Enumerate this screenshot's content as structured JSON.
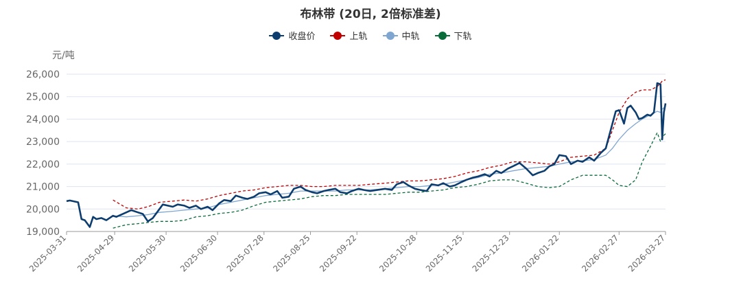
{
  "chart_data": {
    "type": "line",
    "title": "布林带 (20日, 2倍标准差)",
    "ylabel": "元/吨",
    "xlabel": "",
    "ylim": [
      19000,
      26000
    ],
    "yticks": [
      19000,
      20000,
      21000,
      22000,
      23000,
      24000,
      25000,
      26000
    ],
    "ytick_labels": [
      "19,000",
      "20,000",
      "21,000",
      "22,000",
      "23,000",
      "24,000",
      "25,000",
      "26,000"
    ],
    "xtick_labels": [
      "2025-03-31",
      "2025-04-29",
      "2025-05-30",
      "2025-06-30",
      "2025-07-28",
      "2025-08-25",
      "2025-09-22",
      "2025-10-28",
      "2025-11-25",
      "2025-12-23",
      "2026-01-22",
      "2026-02-27",
      "2026-03-27"
    ],
    "grid": true,
    "legend_position": "top",
    "series": [
      {
        "name": "收盘价",
        "color": "#0d3d6e",
        "style": "solid",
        "points": [
          [
            "2025-03-31",
            20350
          ],
          [
            "2025-04-02",
            20380
          ],
          [
            "2025-04-07",
            20300
          ],
          [
            "2025-04-09",
            19550
          ],
          [
            "2025-04-11",
            19500
          ],
          [
            "2025-04-14",
            19200
          ],
          [
            "2025-04-16",
            19650
          ],
          [
            "2025-04-18",
            19550
          ],
          [
            "2025-04-21",
            19600
          ],
          [
            "2025-04-24",
            19500
          ],
          [
            "2025-04-28",
            19700
          ],
          [
            "2025-04-30",
            19650
          ],
          [
            "2025-05-06",
            19850
          ],
          [
            "2025-05-09",
            19950
          ],
          [
            "2025-05-13",
            19850
          ],
          [
            "2025-05-16",
            19780
          ],
          [
            "2025-05-19",
            19450
          ],
          [
            "2025-05-22",
            19600
          ],
          [
            "2025-05-26",
            20000
          ],
          [
            "2025-05-28",
            20200
          ],
          [
            "2025-06-03",
            20100
          ],
          [
            "2025-06-06",
            20200
          ],
          [
            "2025-06-10",
            20150
          ],
          [
            "2025-06-13",
            20050
          ],
          [
            "2025-06-17",
            20150
          ],
          [
            "2025-06-20",
            20000
          ],
          [
            "2025-06-24",
            20100
          ],
          [
            "2025-06-27",
            19950
          ],
          [
            "2025-07-01",
            20250
          ],
          [
            "2025-07-04",
            20400
          ],
          [
            "2025-07-08",
            20350
          ],
          [
            "2025-07-11",
            20600
          ],
          [
            "2025-07-15",
            20500
          ],
          [
            "2025-07-18",
            20450
          ],
          [
            "2025-07-22",
            20550
          ],
          [
            "2025-07-25",
            20700
          ],
          [
            "2025-07-29",
            20750
          ],
          [
            "2025-08-01",
            20650
          ],
          [
            "2025-08-05",
            20800
          ],
          [
            "2025-08-08",
            20500
          ],
          [
            "2025-08-12",
            20550
          ],
          [
            "2025-08-15",
            20900
          ],
          [
            "2025-08-19",
            21000
          ],
          [
            "2025-08-22",
            20850
          ],
          [
            "2025-08-26",
            20750
          ],
          [
            "2025-08-29",
            20700
          ],
          [
            "2025-09-02",
            20800
          ],
          [
            "2025-09-05",
            20850
          ],
          [
            "2025-09-09",
            20900
          ],
          [
            "2025-09-12",
            20750
          ],
          [
            "2025-09-16",
            20700
          ],
          [
            "2025-09-19",
            20800
          ],
          [
            "2025-09-23",
            20900
          ],
          [
            "2025-09-26",
            20850
          ],
          [
            "2025-09-30",
            20800
          ],
          [
            "2025-10-09",
            20900
          ],
          [
            "2025-10-13",
            20850
          ],
          [
            "2025-10-16",
            21100
          ],
          [
            "2025-10-20",
            21200
          ],
          [
            "2025-10-23",
            21050
          ],
          [
            "2025-10-27",
            20900
          ],
          [
            "2025-10-30",
            20850
          ],
          [
            "2025-11-03",
            20800
          ],
          [
            "2025-11-06",
            21100
          ],
          [
            "2025-11-10",
            21050
          ],
          [
            "2025-11-13",
            21150
          ],
          [
            "2025-11-17",
            21000
          ],
          [
            "2025-11-20",
            21050
          ],
          [
            "2025-11-24",
            21200
          ],
          [
            "2025-11-27",
            21300
          ],
          [
            "2025-12-01",
            21400
          ],
          [
            "2025-12-04",
            21450
          ],
          [
            "2025-12-08",
            21550
          ],
          [
            "2025-12-11",
            21450
          ],
          [
            "2025-12-15",
            21700
          ],
          [
            "2025-12-18",
            21600
          ],
          [
            "2025-12-22",
            21800
          ],
          [
            "2025-12-25",
            21900
          ],
          [
            "2025-12-29",
            22050
          ],
          [
            "2026-01-02",
            21800
          ],
          [
            "2026-01-06",
            21500
          ],
          [
            "2026-01-09",
            21600
          ],
          [
            "2026-01-13",
            21700
          ],
          [
            "2026-01-16",
            21900
          ],
          [
            "2026-01-19",
            22000
          ],
          [
            "2026-01-22",
            22400
          ],
          [
            "2026-01-26",
            22350
          ],
          [
            "2026-01-29",
            22000
          ],
          [
            "2026-02-02",
            22150
          ],
          [
            "2026-02-05",
            22100
          ],
          [
            "2026-02-09",
            22300
          ],
          [
            "2026-02-12",
            22150
          ],
          [
            "2026-02-16",
            22500
          ],
          [
            "2026-02-19",
            22700
          ],
          [
            "2026-02-23",
            23800
          ],
          [
            "2026-02-25",
            24350
          ],
          [
            "2026-02-27",
            24400
          ],
          [
            "2026-03-02",
            23800
          ],
          [
            "2026-03-04",
            24500
          ],
          [
            "2026-03-06",
            24600
          ],
          [
            "2026-03-09",
            24300
          ],
          [
            "2026-03-11",
            24000
          ],
          [
            "2026-03-13",
            24050
          ],
          [
            "2026-03-16",
            24200
          ],
          [
            "2026-03-18",
            24150
          ],
          [
            "2026-03-20",
            24300
          ],
          [
            "2026-03-22",
            25600
          ],
          [
            "2026-03-24",
            25550
          ],
          [
            "2026-03-25",
            23100
          ],
          [
            "2026-03-26",
            24300
          ],
          [
            "2026-03-27",
            24700
          ]
        ]
      },
      {
        "name": "上轨",
        "color": "#c00000",
        "style": "dashed",
        "points": [
          [
            "2025-04-28",
            20400
          ],
          [
            "2025-05-06",
            20050
          ],
          [
            "2025-05-13",
            20000
          ],
          [
            "2025-05-19",
            20100
          ],
          [
            "2025-05-26",
            20300
          ],
          [
            "2025-06-03",
            20350
          ],
          [
            "2025-06-10",
            20400
          ],
          [
            "2025-06-17",
            20350
          ],
          [
            "2025-06-24",
            20450
          ],
          [
            "2025-07-01",
            20600
          ],
          [
            "2025-07-08",
            20700
          ],
          [
            "2025-07-15",
            20800
          ],
          [
            "2025-07-22",
            20850
          ],
          [
            "2025-07-29",
            20950
          ],
          [
            "2025-08-05",
            21000
          ],
          [
            "2025-08-12",
            21050
          ],
          [
            "2025-08-19",
            21050
          ],
          [
            "2025-08-26",
            21000
          ],
          [
            "2025-09-02",
            21000
          ],
          [
            "2025-09-09",
            21050
          ],
          [
            "2025-09-16",
            21050
          ],
          [
            "2025-09-23",
            21050
          ],
          [
            "2025-09-30",
            21100
          ],
          [
            "2025-10-09",
            21150
          ],
          [
            "2025-10-16",
            21200
          ],
          [
            "2025-10-23",
            21250
          ],
          [
            "2025-10-30",
            21250
          ],
          [
            "2025-11-06",
            21300
          ],
          [
            "2025-11-13",
            21350
          ],
          [
            "2025-11-20",
            21450
          ],
          [
            "2025-11-27",
            21600
          ],
          [
            "2025-12-04",
            21700
          ],
          [
            "2025-12-11",
            21850
          ],
          [
            "2025-12-18",
            21950
          ],
          [
            "2025-12-25",
            22100
          ],
          [
            "2026-01-02",
            22100
          ],
          [
            "2026-01-09",
            22050
          ],
          [
            "2026-01-16",
            22000
          ],
          [
            "2026-01-22",
            22100
          ],
          [
            "2026-01-29",
            22300
          ],
          [
            "2026-02-05",
            22350
          ],
          [
            "2026-02-12",
            22400
          ],
          [
            "2026-02-19",
            22700
          ],
          [
            "2026-02-23",
            23500
          ],
          [
            "2026-02-27",
            24300
          ],
          [
            "2026-03-04",
            24900
          ],
          [
            "2026-03-09",
            25200
          ],
          [
            "2026-03-13",
            25300
          ],
          [
            "2026-03-18",
            25300
          ],
          [
            "2026-03-22",
            25450
          ],
          [
            "2026-03-24",
            25600
          ],
          [
            "2026-03-25",
            25700
          ],
          [
            "2026-03-27",
            25750
          ]
        ]
      },
      {
        "name": "中轨",
        "color": "#7ea6d0",
        "style": "solid",
        "points": [
          [
            "2025-04-28",
            19700
          ],
          [
            "2025-05-06",
            19650
          ],
          [
            "2025-05-13",
            19700
          ],
          [
            "2025-05-19",
            19750
          ],
          [
            "2025-05-26",
            19850
          ],
          [
            "2025-06-03",
            19900
          ],
          [
            "2025-06-10",
            19950
          ],
          [
            "2025-06-17",
            20000
          ],
          [
            "2025-06-24",
            20050
          ],
          [
            "2025-07-01",
            20200
          ],
          [
            "2025-07-08",
            20300
          ],
          [
            "2025-07-15",
            20400
          ],
          [
            "2025-07-22",
            20500
          ],
          [
            "2025-07-29",
            20600
          ],
          [
            "2025-08-05",
            20650
          ],
          [
            "2025-08-12",
            20700
          ],
          [
            "2025-08-19",
            20800
          ],
          [
            "2025-08-26",
            20800
          ],
          [
            "2025-09-02",
            20800
          ],
          [
            "2025-09-09",
            20800
          ],
          [
            "2025-09-16",
            20850
          ],
          [
            "2025-09-23",
            20850
          ],
          [
            "2025-09-30",
            20850
          ],
          [
            "2025-10-09",
            20900
          ],
          [
            "2025-10-16",
            20950
          ],
          [
            "2025-10-23",
            21000
          ],
          [
            "2025-10-30",
            21000
          ],
          [
            "2025-11-06",
            21050
          ],
          [
            "2025-11-13",
            21100
          ],
          [
            "2025-11-20",
            21200
          ],
          [
            "2025-11-27",
            21300
          ],
          [
            "2025-12-04",
            21400
          ],
          [
            "2025-12-11",
            21550
          ],
          [
            "2025-12-18",
            21600
          ],
          [
            "2025-12-25",
            21700
          ],
          [
            "2026-01-02",
            21800
          ],
          [
            "2026-01-09",
            21850
          ],
          [
            "2026-01-16",
            21900
          ],
          [
            "2026-01-22",
            22000
          ],
          [
            "2026-01-29",
            22100
          ],
          [
            "2026-02-05",
            22150
          ],
          [
            "2026-02-12",
            22200
          ],
          [
            "2026-02-19",
            22400
          ],
          [
            "2026-02-23",
            22700
          ],
          [
            "2026-02-27",
            23100
          ],
          [
            "2026-03-04",
            23500
          ],
          [
            "2026-03-09",
            23800
          ],
          [
            "2026-03-13",
            24000
          ],
          [
            "2026-03-18",
            24200
          ],
          [
            "2026-03-22",
            24350
          ],
          [
            "2026-03-24",
            24300
          ],
          [
            "2026-03-25",
            24450
          ],
          [
            "2026-03-27",
            24550
          ]
        ]
      },
      {
        "name": "下轨",
        "color": "#0a6b3a",
        "style": "dashed",
        "points": [
          [
            "2025-04-28",
            19150
          ],
          [
            "2025-05-06",
            19300
          ],
          [
            "2025-05-13",
            19350
          ],
          [
            "2025-05-19",
            19400
          ],
          [
            "2025-05-26",
            19450
          ],
          [
            "2025-06-03",
            19450
          ],
          [
            "2025-06-10",
            19500
          ],
          [
            "2025-06-17",
            19650
          ],
          [
            "2025-06-24",
            19700
          ],
          [
            "2025-07-01",
            19800
          ],
          [
            "2025-07-08",
            19850
          ],
          [
            "2025-07-15",
            19950
          ],
          [
            "2025-07-22",
            20150
          ],
          [
            "2025-07-29",
            20300
          ],
          [
            "2025-08-05",
            20350
          ],
          [
            "2025-08-12",
            20400
          ],
          [
            "2025-08-19",
            20450
          ],
          [
            "2025-08-26",
            20550
          ],
          [
            "2025-09-02",
            20600
          ],
          [
            "2025-09-09",
            20600
          ],
          [
            "2025-09-16",
            20650
          ],
          [
            "2025-09-23",
            20650
          ],
          [
            "2025-09-30",
            20650
          ],
          [
            "2025-10-09",
            20650
          ],
          [
            "2025-10-16",
            20700
          ],
          [
            "2025-10-23",
            20750
          ],
          [
            "2025-10-30",
            20750
          ],
          [
            "2025-11-06",
            20800
          ],
          [
            "2025-11-13",
            20850
          ],
          [
            "2025-11-20",
            20950
          ],
          [
            "2025-11-27",
            21000
          ],
          [
            "2025-12-04",
            21100
          ],
          [
            "2025-12-11",
            21250
          ],
          [
            "2025-12-18",
            21300
          ],
          [
            "2025-12-25",
            21300
          ],
          [
            "2026-01-02",
            21150
          ],
          [
            "2026-01-09",
            21000
          ],
          [
            "2026-01-16",
            20950
          ],
          [
            "2026-01-22",
            21000
          ],
          [
            "2026-01-29",
            21300
          ],
          [
            "2026-02-05",
            21500
          ],
          [
            "2026-02-12",
            21500
          ],
          [
            "2026-02-19",
            21500
          ],
          [
            "2026-02-23",
            21300
          ],
          [
            "2026-02-27",
            21050
          ],
          [
            "2026-03-04",
            21000
          ],
          [
            "2026-03-09",
            21300
          ],
          [
            "2026-03-13",
            22100
          ],
          [
            "2026-03-18",
            22800
          ],
          [
            "2026-03-22",
            23400
          ],
          [
            "2026-03-24",
            23000
          ],
          [
            "2026-03-25",
            23200
          ],
          [
            "2026-03-27",
            23350
          ]
        ]
      }
    ]
  }
}
